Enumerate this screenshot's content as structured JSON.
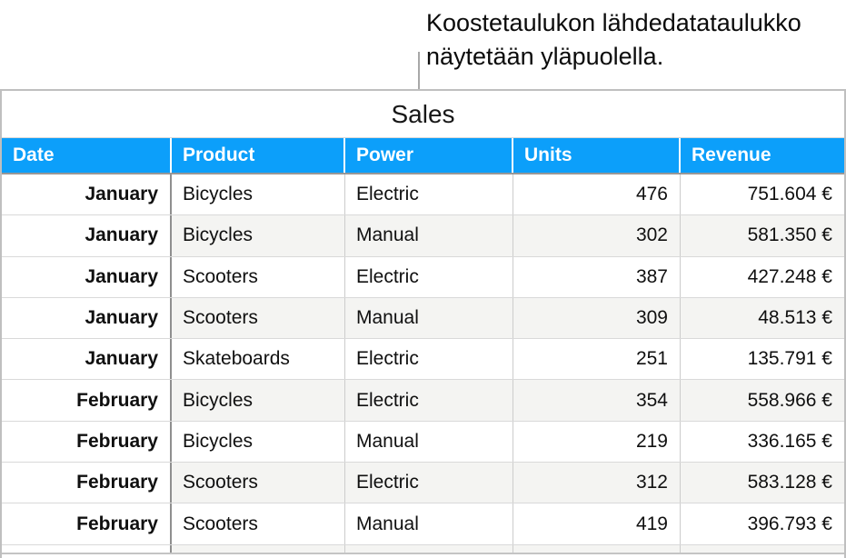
{
  "annotation": {
    "line1": "Koostetaulukon lähdedatataulukko",
    "line2": "näytetään yläpuolella."
  },
  "table": {
    "title": "Sales",
    "headers": [
      "Date",
      "Product",
      "Power",
      "Units",
      "Revenue"
    ],
    "rows": [
      {
        "date": "January",
        "product": "Bicycles",
        "power": "Electric",
        "units": "476",
        "revenue": "751.604 €",
        "shaded": false
      },
      {
        "date": "January",
        "product": "Bicycles",
        "power": "Manual",
        "units": "302",
        "revenue": "581.350 €",
        "shaded": true
      },
      {
        "date": "January",
        "product": "Scooters",
        "power": "Electric",
        "units": "387",
        "revenue": "427.248 €",
        "shaded": false
      },
      {
        "date": "January",
        "product": "Scooters",
        "power": "Manual",
        "units": "309",
        "revenue": "48.513 €",
        "shaded": true
      },
      {
        "date": "January",
        "product": "Skateboards",
        "power": "Electric",
        "units": "251",
        "revenue": "135.791 €",
        "shaded": false
      },
      {
        "date": "February",
        "product": "Bicycles",
        "power": "Electric",
        "units": "354",
        "revenue": "558.966 €",
        "shaded": true
      },
      {
        "date": "February",
        "product": "Bicycles",
        "power": "Manual",
        "units": "219",
        "revenue": "336.165 €",
        "shaded": false
      },
      {
        "date": "February",
        "product": "Scooters",
        "power": "Electric",
        "units": "312",
        "revenue": "583.128 €",
        "shaded": true
      },
      {
        "date": "February",
        "product": "Scooters",
        "power": "Manual",
        "units": "419",
        "revenue": "396.793 €",
        "shaded": false
      }
    ]
  },
  "colors": {
    "header_bg": "#0c9ffa",
    "header_text": "#ffffff",
    "row_shaded_bg": "#f4f4f2",
    "border_h": "#d9d9d9",
    "border_v": "#cccccc",
    "border_dark": "#8f8f8f",
    "outer_border": "#bfbfbf",
    "under_header": "#979797",
    "callout_line": "#a8a8a8",
    "bottom_line": "#c4c4c4"
  }
}
